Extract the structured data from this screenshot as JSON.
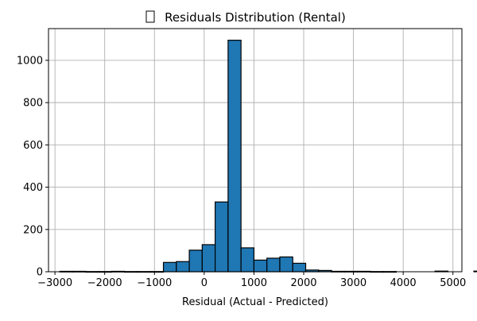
{
  "chart_data": {
    "type": "bar",
    "title_icon": "missing-glyph-icon",
    "title": "Residuals Distribution (Rental)",
    "xlabel": "Residual (Actual - Predicted)",
    "ylabel": "",
    "xlim": [
      -3130,
      5180
    ],
    "ylim": [
      0,
      1150
    ],
    "grid": true,
    "bar_color": "#1f77b4",
    "bin_width": 260,
    "bin_start": -2900,
    "values": [
      2,
      2,
      1,
      1,
      2,
      1,
      1,
      1,
      44,
      48,
      102,
      128,
      330,
      1095,
      113,
      55,
      64,
      70,
      40,
      8,
      6,
      2,
      2,
      2,
      1,
      1,
      0,
      0,
      0,
      3,
      0,
      0,
      3
    ],
    "x_ticks": [
      -3000,
      -2000,
      -1000,
      0,
      1000,
      2000,
      3000,
      4000,
      5000
    ],
    "x_tick_labels": [
      "−3000",
      "−2000",
      "−1000",
      "0",
      "1000",
      "2000",
      "3000",
      "4000",
      "5000"
    ],
    "y_ticks": [
      0,
      200,
      400,
      600,
      800,
      1000
    ],
    "y_tick_labels": [
      "0",
      "200",
      "400",
      "600",
      "800",
      "1000"
    ]
  }
}
